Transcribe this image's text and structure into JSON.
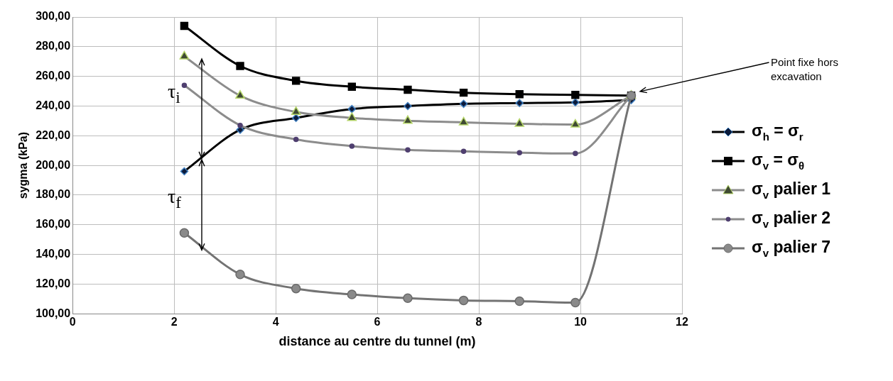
{
  "chart_data": {
    "type": "line",
    "xlabel": "distance au centre du tunnel (m)",
    "ylabel": "sygma (kPa)",
    "x": [
      2.2,
      3.3,
      4.4,
      5.5,
      6.6,
      7.7,
      8.8,
      9.9,
      11
    ],
    "series": [
      {
        "name": "σ$_{h}$ = σ$_{r}$",
        "color": "#000000",
        "marker": "diamond",
        "values": [
          196,
          224,
          232,
          238,
          240,
          241.5,
          242,
          242.5,
          244
        ]
      },
      {
        "name": "σ$_{v}$ = σ$_{θ}$",
        "color": "#000000",
        "marker": "square",
        "values": [
          294,
          267,
          257,
          253,
          251,
          249,
          248,
          247.5,
          247
        ]
      },
      {
        "name": "σ$_{v}$ palier 1",
        "color": "#8c8c8c",
        "marker": "triangle",
        "values": [
          273.5,
          247,
          236,
          232,
          230,
          229,
          228,
          227.5,
          247
        ]
      },
      {
        "name": "σ$_{v}$ palier 2",
        "color": "#8c8c8c",
        "marker": "circle",
        "values": [
          254,
          227,
          217.5,
          213,
          210.5,
          209.5,
          208.5,
          208,
          247
        ]
      },
      {
        "name": "σ$_{v}$ palier 7",
        "color": "#737373",
        "marker": "circle",
        "values": [
          154.5,
          126.5,
          117,
          113,
          110.5,
          109,
          108.5,
          107.5,
          247
        ]
      }
    ],
    "xlim": [
      0,
      12
    ],
    "xticks": [
      0,
      2,
      4,
      6,
      8,
      10,
      12
    ],
    "ylim": [
      100,
      300
    ],
    "yticks": [
      {
        "value": 100,
        "label": "100,00"
      },
      {
        "value": 120,
        "label": "120,00"
      },
      {
        "value": 140,
        "label": "140,00"
      },
      {
        "value": 160,
        "label": "160,00"
      },
      {
        "value": 180,
        "label": "180,00"
      },
      {
        "value": 200,
        "label": "200,00"
      },
      {
        "value": 220,
        "label": "220,00"
      },
      {
        "value": 240,
        "label": "240,00"
      },
      {
        "value": 260,
        "label": "260,00"
      },
      {
        "value": 280,
        "label": "280,00"
      },
      {
        "value": 300,
        "label": "300,00"
      }
    ],
    "grid": true,
    "legend": "right",
    "line_style": "solid",
    "annotations": [
      "Point fixe hors excavation",
      "τ$_{i}$",
      "τ$_{f}$"
    ]
  }
}
